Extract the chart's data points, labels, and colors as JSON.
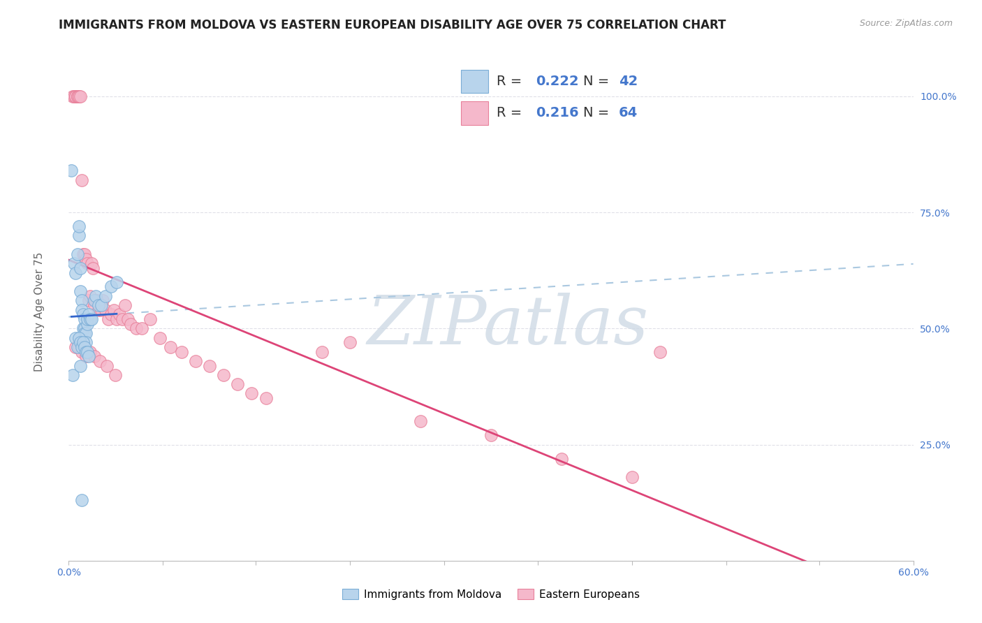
{
  "title": "IMMIGRANTS FROM MOLDOVA VS EASTERN EUROPEAN DISABILITY AGE OVER 75 CORRELATION CHART",
  "source": "Source: ZipAtlas.com",
  "ylabel": "Disability Age Over 75",
  "xlim": [
    0.0,
    0.6
  ],
  "ylim": [
    0.0,
    1.1
  ],
  "xtick_positions": [
    0.0,
    0.067,
    0.133,
    0.2,
    0.267,
    0.333,
    0.4,
    0.467,
    0.533,
    0.6
  ],
  "xticklabels": [
    "0.0%",
    "",
    "",
    "",
    "",
    "",
    "",
    "",
    "",
    "60.0%"
  ],
  "ytick_positions": [
    0.0,
    0.25,
    0.5,
    0.75,
    1.0
  ],
  "ytick_labels": [
    "",
    "25.0%",
    "50.0%",
    "75.0%",
    "100.0%"
  ],
  "blue_fill": "#b8d4ec",
  "blue_edge": "#7aadd6",
  "pink_fill": "#f5b8cb",
  "pink_edge": "#e8809a",
  "blue_line_color": "#3366cc",
  "pink_line_color": "#dd4477",
  "dash_color": "#aac8e0",
  "R_blue": 0.222,
  "N_blue": 42,
  "R_pink": 0.216,
  "N_pink": 64,
  "blue_x": [
    0.002,
    0.004,
    0.005,
    0.006,
    0.007,
    0.007,
    0.008,
    0.008,
    0.009,
    0.009,
    0.01,
    0.01,
    0.011,
    0.011,
    0.011,
    0.012,
    0.012,
    0.013,
    0.013,
    0.014,
    0.015,
    0.016,
    0.018,
    0.019,
    0.021,
    0.023,
    0.026,
    0.03,
    0.034,
    0.005,
    0.006,
    0.007,
    0.008,
    0.009,
    0.01,
    0.011,
    0.012,
    0.013,
    0.014,
    0.003,
    0.008,
    0.009
  ],
  "blue_y": [
    0.84,
    0.64,
    0.62,
    0.66,
    0.7,
    0.72,
    0.63,
    0.58,
    0.56,
    0.54,
    0.53,
    0.5,
    0.52,
    0.5,
    0.49,
    0.49,
    0.47,
    0.51,
    0.52,
    0.53,
    0.52,
    0.52,
    0.56,
    0.57,
    0.55,
    0.55,
    0.57,
    0.59,
    0.6,
    0.48,
    0.46,
    0.48,
    0.47,
    0.46,
    0.47,
    0.46,
    0.45,
    0.45,
    0.44,
    0.4,
    0.42,
    0.13
  ],
  "pink_x": [
    0.003,
    0.004,
    0.005,
    0.005,
    0.006,
    0.006,
    0.006,
    0.007,
    0.007,
    0.008,
    0.009,
    0.01,
    0.011,
    0.012,
    0.013,
    0.014,
    0.015,
    0.016,
    0.017,
    0.018,
    0.019,
    0.02,
    0.021,
    0.022,
    0.023,
    0.024,
    0.026,
    0.028,
    0.03,
    0.032,
    0.034,
    0.036,
    0.038,
    0.04,
    0.042,
    0.044,
    0.048,
    0.052,
    0.058,
    0.065,
    0.072,
    0.08,
    0.09,
    0.1,
    0.11,
    0.12,
    0.13,
    0.14,
    0.005,
    0.007,
    0.009,
    0.012,
    0.015,
    0.018,
    0.022,
    0.027,
    0.033,
    0.2,
    0.25,
    0.3,
    0.35,
    0.4,
    0.18,
    0.42
  ],
  "pink_y": [
    1.0,
    1.0,
    1.0,
    1.0,
    1.0,
    1.0,
    1.0,
    1.0,
    1.0,
    1.0,
    0.82,
    0.66,
    0.66,
    0.65,
    0.64,
    0.56,
    0.57,
    0.64,
    0.63,
    0.55,
    0.56,
    0.56,
    0.54,
    0.55,
    0.54,
    0.56,
    0.54,
    0.52,
    0.53,
    0.54,
    0.52,
    0.53,
    0.52,
    0.55,
    0.52,
    0.51,
    0.5,
    0.5,
    0.52,
    0.48,
    0.46,
    0.45,
    0.43,
    0.42,
    0.4,
    0.38,
    0.36,
    0.35,
    0.46,
    0.46,
    0.45,
    0.44,
    0.45,
    0.44,
    0.43,
    0.42,
    0.4,
    0.47,
    0.3,
    0.27,
    0.22,
    0.18,
    0.45,
    0.45
  ],
  "grid_color": "#e0e0e8",
  "bg_color": "#ffffff",
  "title_fontsize": 12,
  "tick_color": "#4477cc",
  "tick_fontsize": 10,
  "legend_fontsize": 14,
  "ylabel_fontsize": 11,
  "watermark": "ZIPatlas",
  "watermark_color": "#ccd8e4",
  "watermark_fontsize": 70
}
